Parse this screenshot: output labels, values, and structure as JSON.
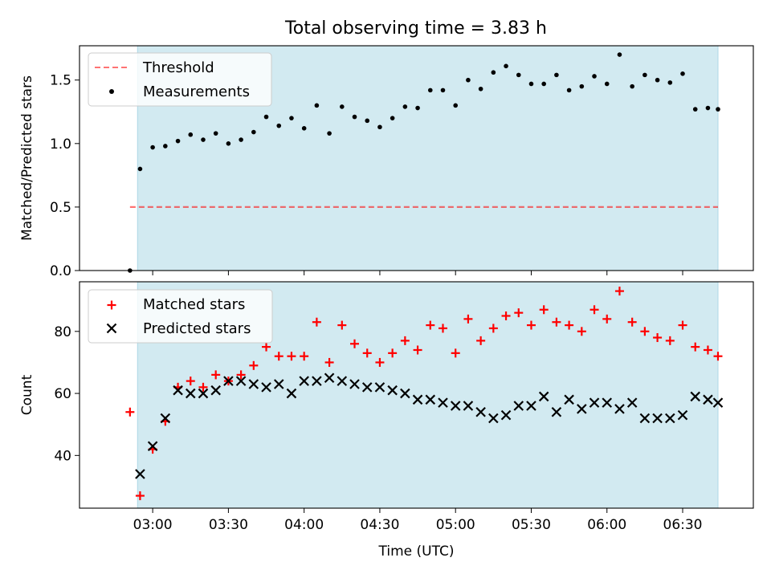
{
  "figure": {
    "title": "Total observing time = 3.83 h",
    "xlabel": "Time (UTC)"
  },
  "colors": {
    "shade": "#add8e6",
    "threshold": "#ff0000",
    "measurement": "#000000",
    "matched": "#ff0000",
    "predicted": "#000000"
  },
  "chart_data": [
    {
      "type": "scatter",
      "ylabel": "Matched/Predicted stars",
      "ylim": [
        0,
        1.77
      ],
      "yticks": [
        0.0,
        0.5,
        1.0,
        1.5
      ],
      "ytick_labels": [
        "0.0",
        "0.5",
        "1.0",
        "1.5"
      ],
      "xlim": [
        "02:31",
        "06:58"
      ],
      "xticks": [
        "03:00",
        "03:30",
        "04:00",
        "04:30",
        "05:00",
        "05:30",
        "06:00",
        "06:30"
      ],
      "shaded_span": [
        "02:54",
        "06:44"
      ],
      "legend_position": "upper left",
      "series": [
        {
          "name": "Threshold",
          "kind": "line",
          "style": "dashed",
          "x": [
            "02:51",
            "06:44"
          ],
          "y": [
            0.5,
            0.5
          ]
        },
        {
          "name": "Measurements",
          "kind": "scatter",
          "marker": "dot",
          "x": [
            "02:51",
            "02:55",
            "03:00",
            "03:05",
            "03:10",
            "03:15",
            "03:20",
            "03:25",
            "03:30",
            "03:35",
            "03:40",
            "03:45",
            "03:50",
            "03:55",
            "04:00",
            "04:05",
            "04:10",
            "04:15",
            "04:20",
            "04:25",
            "04:30",
            "04:35",
            "04:40",
            "04:45",
            "04:50",
            "04:55",
            "05:00",
            "05:05",
            "05:10",
            "05:15",
            "05:20",
            "05:25",
            "05:30",
            "05:35",
            "05:40",
            "05:45",
            "05:50",
            "05:55",
            "06:00",
            "06:05",
            "06:10",
            "06:15",
            "06:20",
            "06:25",
            "06:30",
            "06:35",
            "06:40",
            "06:44"
          ],
          "y": [
            0.0,
            0.8,
            0.97,
            0.98,
            1.02,
            1.07,
            1.03,
            1.08,
            1.0,
            1.03,
            1.09,
            1.21,
            1.14,
            1.2,
            1.12,
            1.3,
            1.08,
            1.29,
            1.21,
            1.18,
            1.13,
            1.2,
            1.29,
            1.28,
            1.42,
            1.42,
            1.3,
            1.5,
            1.43,
            1.56,
            1.61,
            1.54,
            1.47,
            1.47,
            1.54,
            1.42,
            1.45,
            1.53,
            1.47,
            1.7,
            1.45,
            1.54,
            1.5,
            1.48,
            1.55,
            1.27,
            1.28,
            1.27
          ]
        }
      ]
    },
    {
      "type": "scatter",
      "ylabel": "Count",
      "ylim": [
        23,
        96
      ],
      "yticks": [
        40,
        60,
        80
      ],
      "ytick_labels": [
        "40",
        "60",
        "80"
      ],
      "xlim": [
        "02:31",
        "06:58"
      ],
      "xticks": [
        "03:00",
        "03:30",
        "04:00",
        "04:30",
        "05:00",
        "05:30",
        "06:00",
        "06:30"
      ],
      "xtick_labels": [
        "03:00",
        "03:30",
        "04:00",
        "04:30",
        "05:00",
        "05:30",
        "06:00",
        "06:30"
      ],
      "shaded_span": [
        "02:54",
        "06:44"
      ],
      "legend_position": "upper left",
      "series": [
        {
          "name": "Matched stars",
          "kind": "scatter",
          "marker": "plus",
          "x": [
            "02:51",
            "02:55",
            "03:00",
            "03:05",
            "03:10",
            "03:15",
            "03:20",
            "03:25",
            "03:30",
            "03:35",
            "03:40",
            "03:45",
            "03:50",
            "03:55",
            "04:00",
            "04:05",
            "04:10",
            "04:15",
            "04:20",
            "04:25",
            "04:30",
            "04:35",
            "04:40",
            "04:45",
            "04:50",
            "04:55",
            "05:00",
            "05:05",
            "05:10",
            "05:15",
            "05:20",
            "05:25",
            "05:30",
            "05:35",
            "05:40",
            "05:45",
            "05:50",
            "05:55",
            "06:00",
            "06:05",
            "06:10",
            "06:15",
            "06:20",
            "06:25",
            "06:30",
            "06:35",
            "06:40",
            "06:44"
          ],
          "y": [
            54,
            27,
            42,
            51,
            62,
            64,
            62,
            66,
            64,
            66,
            69,
            75,
            72,
            72,
            72,
            83,
            70,
            82,
            76,
            73,
            70,
            73,
            77,
            74,
            82,
            81,
            73,
            84,
            77,
            81,
            85,
            86,
            82,
            87,
            83,
            82,
            80,
            87,
            84,
            93,
            83,
            80,
            78,
            77,
            82,
            75,
            74,
            72
          ]
        },
        {
          "name": "Predicted stars",
          "kind": "scatter",
          "marker": "x",
          "x": [
            "02:55",
            "03:00",
            "03:05",
            "03:10",
            "03:15",
            "03:20",
            "03:25",
            "03:30",
            "03:35",
            "03:40",
            "03:45",
            "03:50",
            "03:55",
            "04:00",
            "04:05",
            "04:10",
            "04:15",
            "04:20",
            "04:25",
            "04:30",
            "04:35",
            "04:40",
            "04:45",
            "04:50",
            "04:55",
            "05:00",
            "05:05",
            "05:10",
            "05:15",
            "05:20",
            "05:25",
            "05:30",
            "05:35",
            "05:40",
            "05:45",
            "05:50",
            "05:55",
            "06:00",
            "06:05",
            "06:10",
            "06:15",
            "06:20",
            "06:25",
            "06:30",
            "06:35",
            "06:40",
            "06:44"
          ],
          "y": [
            34,
            43,
            52,
            61,
            60,
            60,
            61,
            64,
            64,
            63,
            62,
            63,
            60,
            64,
            64,
            65,
            64,
            63,
            62,
            62,
            61,
            60,
            58,
            58,
            57,
            56,
            56,
            54,
            52,
            53,
            56,
            56,
            59,
            54,
            58,
            55,
            57,
            57,
            55,
            57,
            52,
            52,
            52,
            53,
            59,
            58,
            57
          ]
        }
      ]
    }
  ]
}
